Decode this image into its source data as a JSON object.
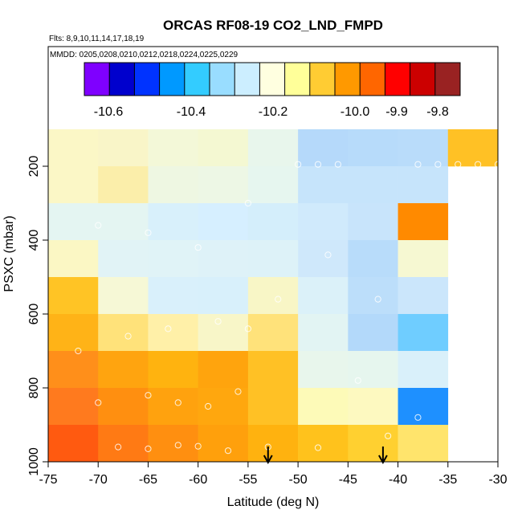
{
  "chart_data": {
    "type": "heatmap",
    "title": "ORCAS RF08-19 CO2_LND_FMPD",
    "flights_label": "Flts: 8,9,10,11,14,17,18,19",
    "mmdd_label": "MMDD: 0205,0208,0210,0212,0218,0224,0225,0229",
    "xlabel": "Latitude (deg N)",
    "ylabel": "PSXC (mbar)",
    "xlim": [
      -75,
      -30
    ],
    "ylim": [
      1000,
      100
    ],
    "x_ticks": [
      -75,
      -70,
      -65,
      -60,
      -55,
      -50,
      -45,
      -40,
      -35,
      -30
    ],
    "x_tick_labels": [
      "-75",
      "-70",
      "-65",
      "-60",
      "-55",
      "-50",
      "-45",
      "-40",
      "-35",
      "-30"
    ],
    "y_ticks": [
      200,
      400,
      600,
      800,
      1000
    ],
    "y_tick_labels": [
      "200",
      "400",
      "600",
      "800",
      "1000"
    ],
    "colorbar": {
      "labels": [
        {
          "value": -10.6,
          "text": "-10.6"
        },
        {
          "value": -10.4,
          "text": "-10.4"
        },
        {
          "value": -10.2,
          "text": "-10.2"
        },
        {
          "value": -10.0,
          "text": "-10.0"
        },
        {
          "value": -9.9,
          "text": "-9.9"
        },
        {
          "value": -9.8,
          "text": "-9.8"
        }
      ],
      "colors": [
        "#7f00ff",
        "#0000cd",
        "#0033ff",
        "#0099ff",
        "#33ccff",
        "#99ddff",
        "#cceeff",
        "#ffffe0",
        "#ffff99",
        "#ffcc33",
        "#ff9900",
        "#ff6600",
        "#ff0000",
        "#cc0000",
        "#992222"
      ]
    },
    "lat_bins": [
      -75,
      -70,
      -65,
      -60,
      -55,
      -50,
      -45,
      -40,
      -35,
      -30
    ],
    "p_bins": [
      100,
      200,
      300,
      400,
      500,
      600,
      700,
      800,
      900,
      1000
    ],
    "cells": [
      [
        "#fbf7c6",
        "#f9f5c8",
        "#f3f8d8",
        "#f4f8d2",
        "#e8f6ec",
        "#b5d9fa",
        "#b7dbfa",
        "#b9dcfa",
        "#ffc125"
      ],
      [
        "#fbf7c6",
        "#fbeeaa",
        "#eef7e2",
        "#edf7e5",
        "#e6f6ef",
        "#c6e4fb",
        "#c6e4fb",
        "#c6e4fb",
        null
      ],
      [
        "#e4f5f2",
        "#e4f5f2",
        "#d8f0fb",
        "#d6efff",
        "#d4eefb",
        "#d0eafc",
        "#c8e4fb",
        "#ff8a00",
        null
      ],
      [
        "#fbf7c4",
        "#e1f3f6",
        "#e0f3f7",
        "#def2f8",
        "#ddf2f8",
        "#cfe8fb",
        "#b8dcfa",
        "#f6f8d2",
        null
      ],
      [
        "#ffc425",
        "#f6f8d6",
        "#d9f0fb",
        "#d8f0fb",
        "#f8f6c6",
        "#dbf1f9",
        "#bcdefa",
        "#cbe6fb",
        null
      ],
      [
        "#ffb317",
        "#ffe27a",
        "#fff0a8",
        "#f8f6c8",
        "#ffe27a",
        "#e2f4f3",
        "#b3d9fa",
        "#6fcdff",
        null
      ],
      [
        "#ff8f1a",
        "#ffa40f",
        "#ffb30f",
        "#ffa40d",
        "#ffc125",
        "#e8f6ec",
        "#e6f6ee",
        "#d9f0fa",
        null
      ],
      [
        "#ff7a1e",
        "#ff8f10",
        "#ffa20e",
        "#ffa70e",
        "#ffc125",
        "#fdfab8",
        "#fdf9c0",
        "#1e90ff",
        null
      ],
      [
        "#ff5a10",
        "#ff7a14",
        "#ff8f10",
        "#ffa00c",
        "#ffb20f",
        "#ffc21c",
        "#ffd030",
        "#ffe46c",
        null
      ]
    ],
    "observations": [
      {
        "lat": -68,
        "p": 960
      },
      {
        "lat": -65,
        "p": 965
      },
      {
        "lat": -62,
        "p": 955
      },
      {
        "lat": -60,
        "p": 958
      },
      {
        "lat": -57,
        "p": 970
      },
      {
        "lat": -53,
        "p": 960
      },
      {
        "lat": -48,
        "p": 962
      },
      {
        "lat": -70,
        "p": 840
      },
      {
        "lat": -65,
        "p": 820
      },
      {
        "lat": -62,
        "p": 840
      },
      {
        "lat": -59,
        "p": 850
      },
      {
        "lat": -56,
        "p": 810
      },
      {
        "lat": -72,
        "p": 700
      },
      {
        "lat": -67,
        "p": 660
      },
      {
        "lat": -63,
        "p": 640
      },
      {
        "lat": -58,
        "p": 620
      },
      {
        "lat": -55,
        "p": 640
      },
      {
        "lat": -52,
        "p": 560
      },
      {
        "lat": -47,
        "p": 440
      },
      {
        "lat": -60,
        "p": 420
      },
      {
        "lat": -65,
        "p": 380
      },
      {
        "lat": -70,
        "p": 360
      },
      {
        "lat": -55,
        "p": 300
      },
      {
        "lat": -50,
        "p": 195
      },
      {
        "lat": -48,
        "p": 195
      },
      {
        "lat": -46,
        "p": 195
      },
      {
        "lat": -38,
        "p": 195
      },
      {
        "lat": -36,
        "p": 195
      },
      {
        "lat": -34,
        "p": 195
      },
      {
        "lat": -32,
        "p": 195
      },
      {
        "lat": -30,
        "p": 195
      },
      {
        "lat": -42,
        "p": 560
      },
      {
        "lat": -44,
        "p": 780
      },
      {
        "lat": -41,
        "p": 930
      },
      {
        "lat": -38,
        "p": 880
      }
    ],
    "arrows_at_lat": [
      -53,
      -41.5
    ]
  }
}
